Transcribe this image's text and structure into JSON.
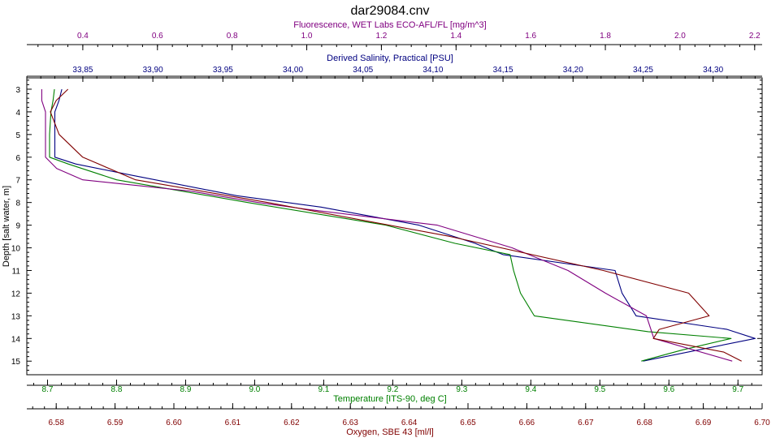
{
  "chart_data": {
    "type": "line",
    "title": "dar29084.cnv",
    "y_axis": {
      "label": "Depth [salt water, m]",
      "range": [
        2.5,
        15.6
      ],
      "ticks": [
        3,
        4,
        5,
        6,
        7,
        8,
        9,
        10,
        11,
        12,
        13,
        14,
        15
      ],
      "inverted": true
    },
    "x_axes": [
      {
        "key": "fluor",
        "label": "Fluorescence, WET Labs ECO-AFL/FL [mg/m^3]",
        "placement": "top",
        "range": [
          0.25,
          2.22
        ],
        "ticks": [
          0.4,
          0.6,
          0.8,
          1.0,
          1.2,
          1.4,
          1.6,
          1.8,
          2.0,
          2.2
        ],
        "tick_labels": [
          "0.4",
          "0.6",
          "0.8",
          "1.0",
          "1.2",
          "1.4",
          "1.6",
          "1.8",
          "2.0",
          "2.2"
        ],
        "color": "#800080"
      },
      {
        "key": "sal",
        "label": "Derived Salinity, Practical [PSU]",
        "placement": "top",
        "range": [
          33.81,
          34.335
        ],
        "ticks": [
          33.85,
          33.9,
          33.95,
          34.0,
          34.05,
          34.1,
          34.15,
          34.2,
          34.25,
          34.3
        ],
        "tick_labels": [
          "33,85",
          "33,90",
          "33,95",
          "34,00",
          "34,05",
          "34,10",
          "34,15",
          "34,20",
          "34,25",
          "34,30"
        ],
        "color": "#000080"
      },
      {
        "key": "temp",
        "label": "Temperature [ITS-90, deg C]",
        "placement": "bottom",
        "range": [
          8.67,
          9.735
        ],
        "ticks": [
          8.7,
          8.8,
          8.9,
          9.0,
          9.1,
          9.2,
          9.3,
          9.4,
          9.5,
          9.6,
          9.7
        ],
        "tick_labels": [
          "8.7",
          "8.8",
          "8.9",
          "9.0",
          "9.1",
          "9.2",
          "9.3",
          "9.4",
          "9.5",
          "9.6",
          "9.7"
        ],
        "color": "#008000"
      },
      {
        "key": "oxy",
        "label": "Oxygen, SBE 43 [ml/l]",
        "placement": "bottom",
        "range": [
          6.575,
          6.7
        ],
        "ticks": [
          6.58,
          6.59,
          6.6,
          6.61,
          6.62,
          6.63,
          6.64,
          6.65,
          6.66,
          6.67,
          6.68,
          6.69,
          6.7
        ],
        "tick_labels": [
          "6.58",
          "6.59",
          "6.60",
          "6.61",
          "6.62",
          "6.63",
          "6.64",
          "6.65",
          "6.66",
          "6.67",
          "6.68",
          "6.69",
          "6.70"
        ],
        "color": "#800000"
      }
    ],
    "series": [
      {
        "axis": "sal",
        "color": "#000080",
        "points": [
          [
            33.835,
            3
          ],
          [
            33.833,
            3.5
          ],
          [
            33.83,
            4
          ],
          [
            33.83,
            5
          ],
          [
            33.83,
            6
          ],
          [
            33.845,
            6.3
          ],
          [
            33.885,
            6.8
          ],
          [
            33.96,
            7.7
          ],
          [
            34.02,
            8.2
          ],
          [
            34.09,
            9
          ],
          [
            34.13,
            9.8
          ],
          [
            34.15,
            10.3
          ],
          [
            34.23,
            11
          ],
          [
            34.235,
            12
          ],
          [
            34.245,
            13
          ],
          [
            34.31,
            13.6
          ],
          [
            34.33,
            14
          ],
          [
            34.25,
            15
          ]
        ]
      },
      {
        "axis": "temp",
        "color": "#008000",
        "points": [
          [
            8.71,
            3
          ],
          [
            8.708,
            3.5
          ],
          [
            8.705,
            4
          ],
          [
            8.703,
            5
          ],
          [
            8.703,
            6
          ],
          [
            8.73,
            6.3
          ],
          [
            8.8,
            7
          ],
          [
            8.99,
            8
          ],
          [
            9.19,
            9
          ],
          [
            9.29,
            9.8
          ],
          [
            9.37,
            10.3
          ],
          [
            9.375,
            11
          ],
          [
            9.385,
            12
          ],
          [
            9.405,
            13
          ],
          [
            9.57,
            13.7
          ],
          [
            9.69,
            14
          ],
          [
            9.62,
            14.5
          ],
          [
            9.56,
            15
          ]
        ]
      },
      {
        "axis": "fluor",
        "color": "#800080",
        "points": [
          [
            0.29,
            3
          ],
          [
            0.29,
            3.5
          ],
          [
            0.3,
            4
          ],
          [
            0.3,
            5
          ],
          [
            0.3,
            6
          ],
          [
            0.33,
            6.5
          ],
          [
            0.4,
            7
          ],
          [
            0.69,
            7.5
          ],
          [
            0.87,
            8
          ],
          [
            1.0,
            8.3
          ],
          [
            1.35,
            9
          ],
          [
            1.55,
            10
          ],
          [
            1.7,
            11
          ],
          [
            1.8,
            12
          ],
          [
            1.91,
            13
          ],
          [
            1.93,
            14
          ],
          [
            2.14,
            15
          ]
        ]
      },
      {
        "axis": "oxy",
        "color": "#800000",
        "points": [
          [
            6.582,
            3
          ],
          [
            6.58,
            3.5
          ],
          [
            6.579,
            4
          ],
          [
            6.5805,
            5
          ],
          [
            6.5845,
            6
          ],
          [
            6.5935,
            7
          ],
          [
            6.616,
            8
          ],
          [
            6.647,
            9.5
          ],
          [
            6.673,
            11
          ],
          [
            6.6875,
            12
          ],
          [
            6.691,
            13
          ],
          [
            6.6825,
            13.6
          ],
          [
            6.6815,
            14
          ],
          [
            6.6935,
            14.6
          ],
          [
            6.6965,
            15
          ]
        ]
      }
    ]
  }
}
